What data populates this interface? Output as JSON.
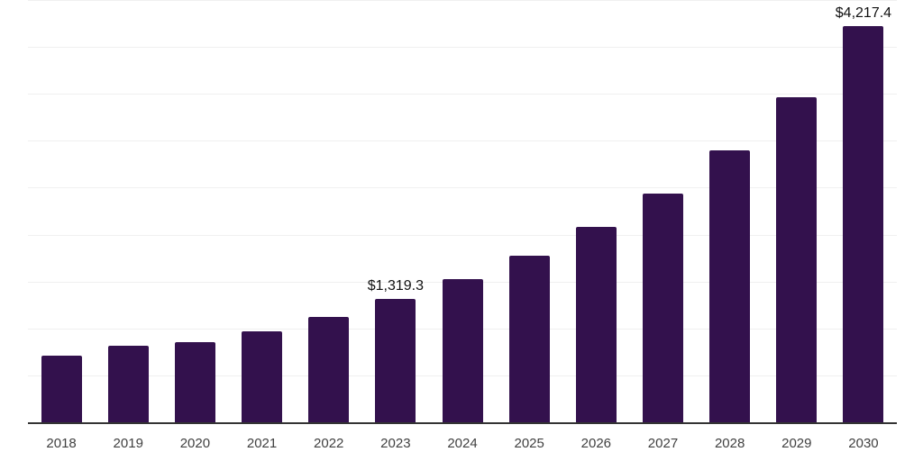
{
  "chart_data": {
    "type": "bar",
    "title": "",
    "xlabel": "",
    "ylabel": "",
    "categories": [
      "2018",
      "2019",
      "2020",
      "2021",
      "2022",
      "2023",
      "2024",
      "2025",
      "2026",
      "2027",
      "2028",
      "2029",
      "2030"
    ],
    "values": [
      710,
      812,
      854,
      972,
      1125,
      1319.3,
      1525,
      1774,
      2081,
      2436,
      2899,
      3462,
      4217.4
    ],
    "data_labels": {
      "2023": "$1,319.3",
      "2030": "$4,217.4"
    },
    "ylim": [
      0,
      4500
    ],
    "gridline_step": 500,
    "grid": "horizontal",
    "legend": "none",
    "bar_color": "#33114d",
    "axis_line_color": "#333333",
    "gridline_color": "#f0f0f0",
    "tick_label_color": "#404040",
    "data_label_color": "#111111"
  }
}
